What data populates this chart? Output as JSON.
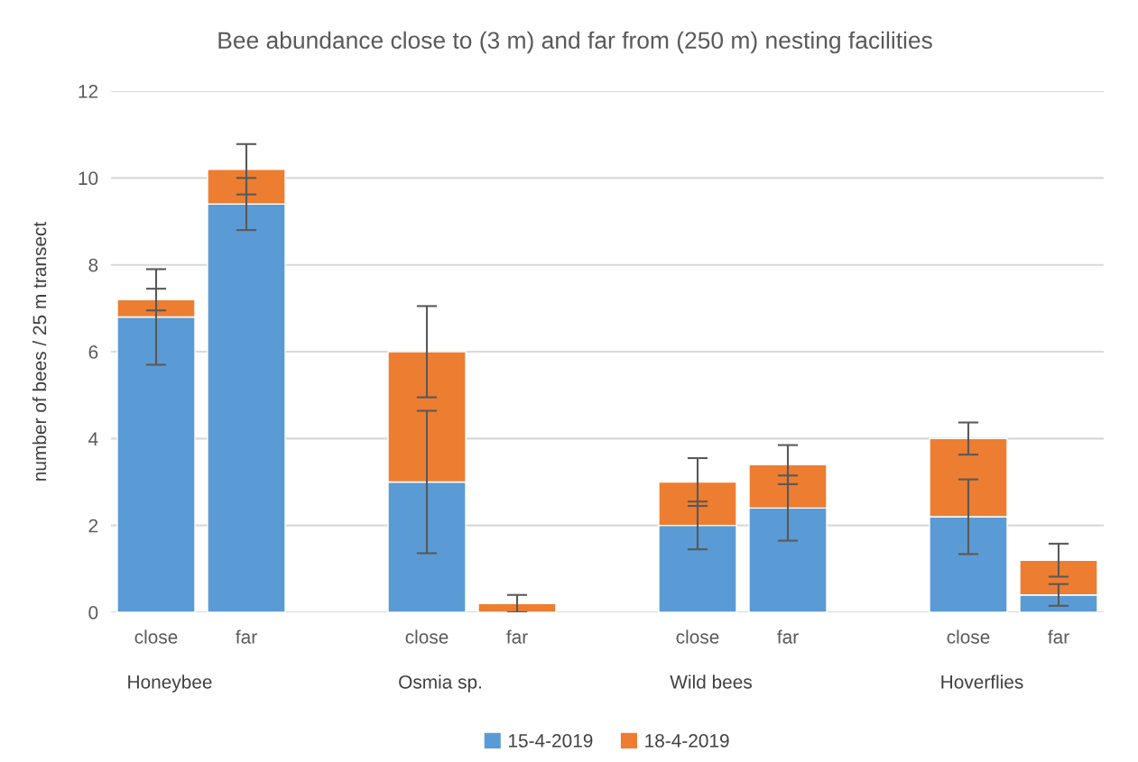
{
  "chart_data": {
    "type": "bar",
    "title": "Bee abundance close to (3 m) and far from (250 m) nesting facilities",
    "ylabel": "number of bees / 25 m transect",
    "categories": [
      "close",
      "far",
      null,
      "close",
      "far",
      null,
      "close",
      "far",
      null,
      "close",
      "far"
    ],
    "annotations": [
      "Honeybee",
      "Osmia sp.",
      "Wild bees",
      "Hoverflies"
    ],
    "stacked": true,
    "series": [
      {
        "name": "15-4-2019",
        "color": "#5b9bd5",
        "values": [
          6.8,
          9.4,
          null,
          3.0,
          0,
          null,
          2.0,
          2.4,
          null,
          2.2,
          0.4
        ],
        "errors": [
          1.1,
          0.6,
          null,
          1.64,
          null,
          null,
          0.55,
          0.75,
          null,
          0.86,
          0.25
        ]
      },
      {
        "name": "18-4-2019",
        "color": "#ed7d31",
        "values": [
          0.4,
          0.8,
          null,
          3.0,
          0.2,
          null,
          1.0,
          1.0,
          null,
          1.8,
          0.8
        ],
        "errors": [
          0.25,
          0.58,
          null,
          1.05,
          0.2,
          null,
          0.55,
          0.45,
          null,
          0.37,
          0.38
        ]
      }
    ],
    "ylim": [
      0,
      12
    ],
    "yticks": [
      0,
      2,
      4,
      6,
      8,
      10,
      12
    ],
    "grid": "y",
    "legend": "bottom"
  }
}
